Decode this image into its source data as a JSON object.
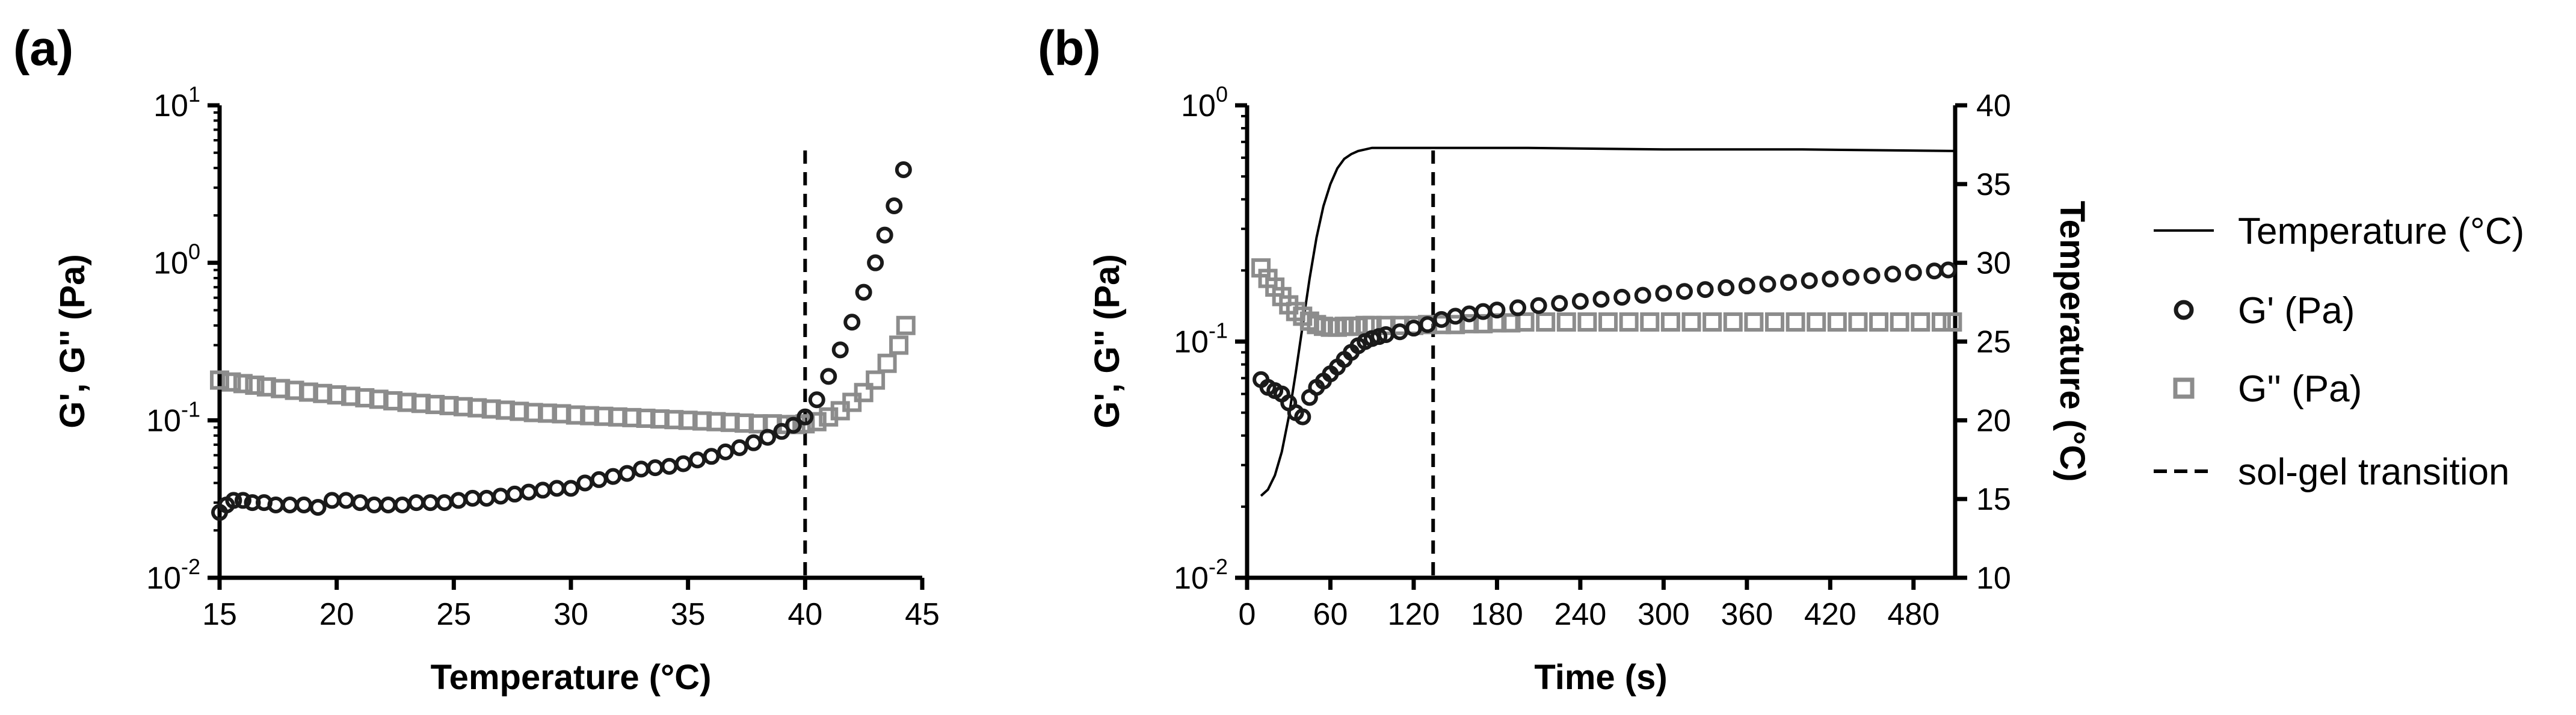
{
  "chart_data": [
    {
      "panel_label": "(a)",
      "type": "scatter",
      "xlabel": "Temperature (°C)",
      "ylabel": "G', G'' (Pa)",
      "xlim": [
        15,
        45
      ],
      "xticks": [
        "15",
        "20",
        "25",
        "30",
        "35",
        "40",
        "45"
      ],
      "yscale": "log",
      "ylim": [
        0.01,
        10
      ],
      "yticks": [
        {
          "base": "10",
          "exp": "-2"
        },
        {
          "base": "10",
          "exp": "-1"
        },
        {
          "base": "10",
          "exp": "0"
        },
        {
          "base": "10",
          "exp": "1"
        }
      ],
      "vline_x": 40,
      "series": [
        {
          "name": "G' (Pa)",
          "marker": "circle",
          "x": [
            15.0,
            15.3,
            15.6,
            16.0,
            16.4,
            16.9,
            17.4,
            18.0,
            18.6,
            19.2,
            19.8,
            20.4,
            21.0,
            21.6,
            22.2,
            22.8,
            23.4,
            24.0,
            24.6,
            25.2,
            25.8,
            26.4,
            27.0,
            27.6,
            28.2,
            28.8,
            29.4,
            30.0,
            30.6,
            31.2,
            31.8,
            32.4,
            33.0,
            33.6,
            34.2,
            34.8,
            35.4,
            36.0,
            36.6,
            37.2,
            37.8,
            38.4,
            39.0,
            39.5,
            40.0,
            40.5,
            41.0,
            41.5,
            42.0,
            42.5,
            43.0,
            43.4,
            43.8,
            44.2
          ],
          "y": [
            0.026,
            0.029,
            0.031,
            0.031,
            0.03,
            0.03,
            0.029,
            0.029,
            0.029,
            0.028,
            0.031,
            0.031,
            0.03,
            0.029,
            0.029,
            0.029,
            0.03,
            0.03,
            0.03,
            0.031,
            0.032,
            0.032,
            0.033,
            0.034,
            0.035,
            0.036,
            0.037,
            0.037,
            0.04,
            0.042,
            0.044,
            0.046,
            0.049,
            0.05,
            0.051,
            0.053,
            0.056,
            0.059,
            0.063,
            0.067,
            0.072,
            0.078,
            0.085,
            0.093,
            0.105,
            0.135,
            0.19,
            0.28,
            0.42,
            0.65,
            1.0,
            1.5,
            2.3,
            3.9
          ]
        },
        {
          "name": "G'' (Pa)",
          "marker": "square",
          "x": [
            15.0,
            15.5,
            16.0,
            16.5,
            17.0,
            17.6,
            18.2,
            18.8,
            19.4,
            20.0,
            20.6,
            21.2,
            21.8,
            22.4,
            23.0,
            23.6,
            24.2,
            24.8,
            25.4,
            26.0,
            26.6,
            27.2,
            27.8,
            28.4,
            29.0,
            29.6,
            30.2,
            30.8,
            31.4,
            32.0,
            32.6,
            33.2,
            33.8,
            34.4,
            35.0,
            35.6,
            36.2,
            36.8,
            37.4,
            38.0,
            38.6,
            39.2,
            39.6,
            40.0,
            40.5,
            41.0,
            41.5,
            42.0,
            42.5,
            43.0,
            43.5,
            44.0,
            44.3
          ],
          "y": [
            0.18,
            0.175,
            0.171,
            0.167,
            0.163,
            0.159,
            0.155,
            0.151,
            0.148,
            0.145,
            0.142,
            0.139,
            0.136,
            0.133,
            0.13,
            0.128,
            0.126,
            0.124,
            0.122,
            0.12,
            0.118,
            0.116,
            0.114,
            0.112,
            0.111,
            0.11,
            0.108,
            0.107,
            0.106,
            0.105,
            0.104,
            0.103,
            0.102,
            0.101,
            0.1,
            0.099,
            0.098,
            0.097,
            0.096,
            0.095,
            0.095,
            0.094,
            0.094,
            0.095,
            0.098,
            0.105,
            0.115,
            0.13,
            0.15,
            0.18,
            0.23,
            0.3,
            0.4
          ]
        }
      ]
    },
    {
      "panel_label": "(b)",
      "type": "scatter",
      "xlabel": "Time (s)",
      "ylabel": "G', G'' (Pa)",
      "y2label": "Temperature (°C)",
      "xlim": [
        0,
        510
      ],
      "xticks": [
        "0",
        "60",
        "120",
        "180",
        "240",
        "300",
        "360",
        "420",
        "480"
      ],
      "yscale": "log",
      "ylim": [
        0.01,
        1
      ],
      "yticks": [
        {
          "base": "10",
          "exp": "-2"
        },
        {
          "base": "10",
          "exp": "-1"
        },
        {
          "base": "10",
          "exp": "0"
        }
      ],
      "y2lim": [
        10,
        40
      ],
      "y2ticks": [
        "10",
        "15",
        "20",
        "25",
        "30",
        "35",
        "40"
      ],
      "vline_x": 134,
      "temperature_line": {
        "name": "Temperature (°C)",
        "x": [
          10,
          15,
          20,
          25,
          30,
          35,
          40,
          45,
          50,
          55,
          60,
          65,
          70,
          75,
          80,
          85,
          90,
          100,
          120,
          200,
          300,
          400,
          510
        ],
        "y": [
          15.2,
          15.6,
          16.5,
          18.0,
          20.2,
          23.0,
          26.0,
          29.0,
          31.6,
          33.6,
          35.0,
          36.0,
          36.6,
          36.9,
          37.1,
          37.2,
          37.3,
          37.3,
          37.3,
          37.3,
          37.2,
          37.2,
          37.1
        ]
      },
      "series": [
        {
          "name": "G' (Pa)",
          "marker": "circle",
          "x": [
            10,
            15,
            20,
            25,
            30,
            35,
            40,
            45,
            50,
            55,
            60,
            65,
            70,
            75,
            80,
            85,
            90,
            95,
            100,
            110,
            120,
            130,
            140,
            150,
            160,
            170,
            180,
            195,
            210,
            225,
            240,
            255,
            270,
            285,
            300,
            315,
            330,
            345,
            360,
            375,
            390,
            405,
            420,
            435,
            450,
            465,
            480,
            495,
            505
          ],
          "y": [
            0.069,
            0.064,
            0.062,
            0.06,
            0.055,
            0.05,
            0.048,
            0.058,
            0.064,
            0.068,
            0.073,
            0.078,
            0.084,
            0.09,
            0.096,
            0.1,
            0.103,
            0.105,
            0.107,
            0.11,
            0.114,
            0.118,
            0.124,
            0.128,
            0.131,
            0.134,
            0.136,
            0.139,
            0.142,
            0.145,
            0.148,
            0.151,
            0.154,
            0.157,
            0.16,
            0.163,
            0.166,
            0.169,
            0.172,
            0.175,
            0.178,
            0.181,
            0.184,
            0.187,
            0.19,
            0.193,
            0.196,
            0.199,
            0.201
          ]
        },
        {
          "name": "G'' (Pa)",
          "marker": "square",
          "x": [
            10,
            15,
            20,
            25,
            30,
            35,
            40,
            45,
            50,
            55,
            60,
            65,
            70,
            75,
            80,
            85,
            90,
            100,
            110,
            120,
            130,
            140,
            150,
            160,
            170,
            180,
            190,
            200,
            215,
            230,
            245,
            260,
            275,
            290,
            305,
            320,
            335,
            350,
            365,
            380,
            395,
            410,
            425,
            440,
            455,
            470,
            485,
            500,
            508
          ],
          "y": [
            0.205,
            0.185,
            0.17,
            0.155,
            0.143,
            0.134,
            0.128,
            0.122,
            0.118,
            0.116,
            0.115,
            0.115,
            0.116,
            0.116,
            0.116,
            0.117,
            0.117,
            0.117,
            0.117,
            0.117,
            0.118,
            0.118,
            0.118,
            0.119,
            0.119,
            0.12,
            0.12,
            0.121,
            0.121,
            0.121,
            0.121,
            0.121,
            0.121,
            0.121,
            0.121,
            0.121,
            0.121,
            0.121,
            0.121,
            0.121,
            0.121,
            0.121,
            0.121,
            0.121,
            0.121,
            0.121,
            0.121,
            0.121,
            0.121
          ]
        }
      ]
    }
  ],
  "legend": {
    "items": [
      {
        "symbol": "line",
        "label": "Temperature (°C)"
      },
      {
        "symbol": "circle",
        "label": "G' (Pa)"
      },
      {
        "symbol": "square",
        "label": "G'' (Pa)"
      },
      {
        "symbol": "dashed",
        "label": "sol-gel transition"
      }
    ]
  },
  "colors": {
    "g_prime": "#1a1a1a",
    "g_double_prime": "#8c8c8c",
    "temperature": "#000000",
    "transition": "#000000"
  }
}
